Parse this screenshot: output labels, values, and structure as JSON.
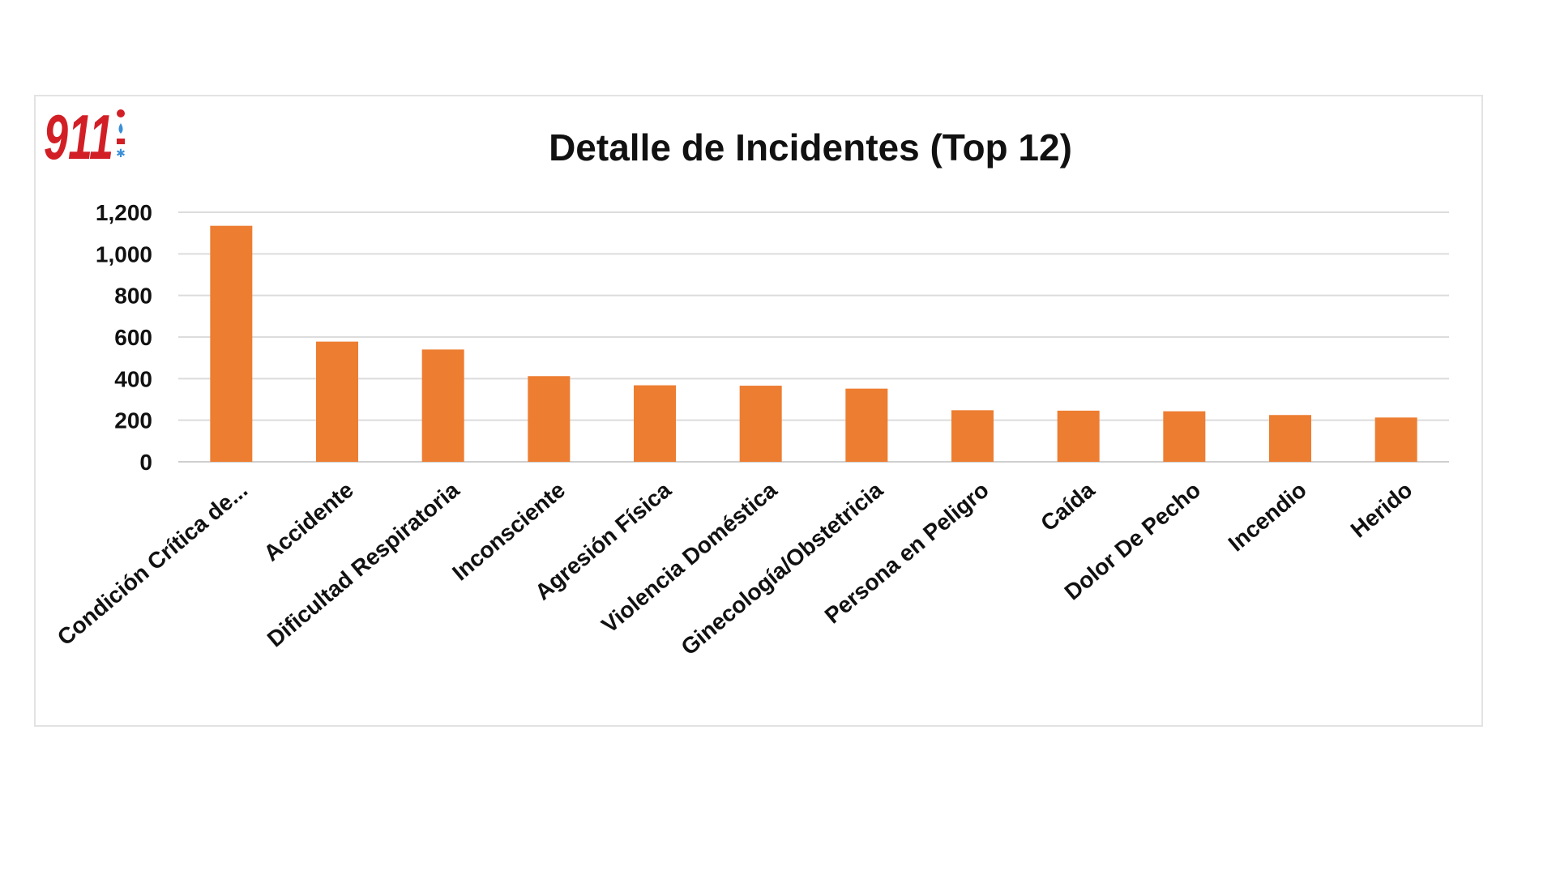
{
  "logo": {
    "text": "911",
    "color": "#d21f26",
    "icon": "911-emergency-logo"
  },
  "chart_data": {
    "type": "bar",
    "title": "Detalle de Incidentes (Top 12)",
    "xlabel": "",
    "ylabel": "",
    "ylim": [
      0,
      1200
    ],
    "yticks": [
      "0",
      "200",
      "400",
      "600",
      "800",
      "1,000",
      "1,200"
    ],
    "ytick_values": [
      0,
      200,
      400,
      600,
      800,
      1000,
      1200
    ],
    "grid": true,
    "bar_color": "#ed7d31",
    "categories": [
      "Condición Crítica de...",
      "Accidente",
      "Dificultad Respiratoria",
      "Inconsciente",
      "Agresión Física",
      "Violencia Doméstica",
      "Ginecología/Obstetricia",
      "Persona en Peligro",
      "Caída",
      "Dolor De Pecho",
      "Incendio",
      "Herido"
    ],
    "values": [
      1135,
      578,
      540,
      412,
      368,
      366,
      352,
      248,
      246,
      243,
      225,
      213
    ]
  }
}
